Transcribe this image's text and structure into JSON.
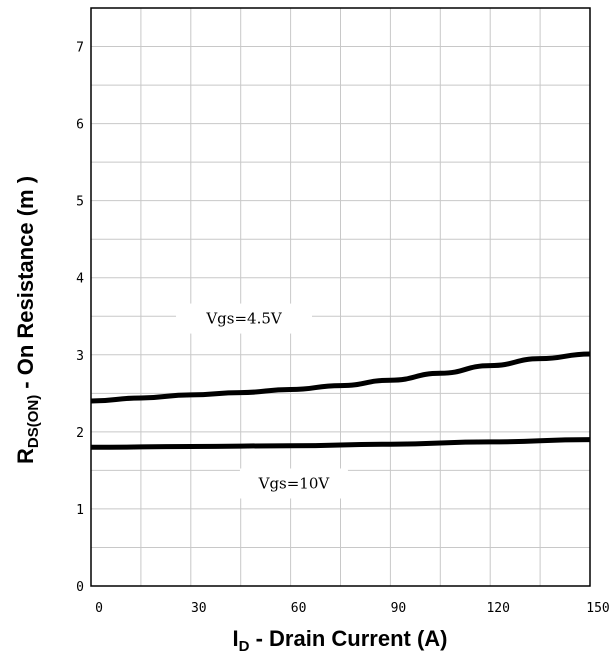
{
  "chart_data": {
    "type": "line",
    "xlabel": {
      "main": "I",
      "sub": "D",
      "rest": " - Drain Current (A)"
    },
    "ylabel": {
      "main": "R",
      "sub": "DS(ON)",
      "rest": " - On Resistance (m   )"
    },
    "xlim": [
      0,
      150
    ],
    "ylim": [
      0,
      7.5
    ],
    "x_ticks": [
      0,
      30,
      60,
      90,
      120,
      150
    ],
    "y_ticks": [
      0,
      1,
      2,
      3,
      4,
      5,
      6,
      7
    ],
    "grid": true,
    "series": [
      {
        "name": "Vgs=4.5V",
        "x": [
          0,
          15,
          30,
          45,
          60,
          75,
          90,
          105,
          120,
          135,
          150
        ],
        "y": [
          2.4,
          2.44,
          2.48,
          2.51,
          2.55,
          2.6,
          2.67,
          2.76,
          2.86,
          2.95,
          3.01
        ]
      },
      {
        "name": "Vgs=10V",
        "x": [
          0,
          30,
          60,
          90,
          120,
          150
        ],
        "y": [
          1.8,
          1.81,
          1.82,
          1.84,
          1.87,
          1.9
        ]
      }
    ]
  }
}
